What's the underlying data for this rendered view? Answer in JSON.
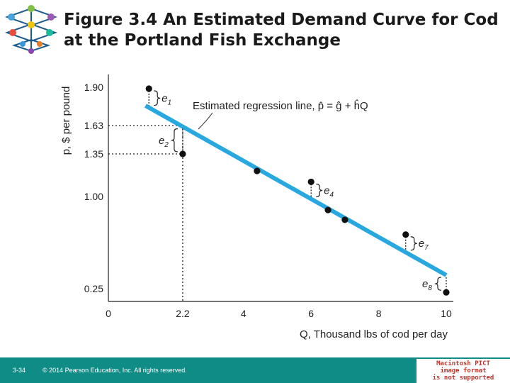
{
  "title": "Figure 3.4 An Estimated Demand Curve for Cod at the Portland Fish Exchange",
  "footer": {
    "slide_number": "3-34",
    "copyright": "© 2014 Pearson Education, Inc. All rights reserved.",
    "pict_notice": [
      "Macintosh PICT",
      "image format",
      "is not supported"
    ]
  },
  "colors": {
    "footer": "#0f8c86",
    "regression_line": "#29a8e0",
    "points": "#111111"
  },
  "chart_data": {
    "type": "scatter",
    "title": "",
    "xlabel": "Q, Thousand lbs of cod per day",
    "ylabel": "p, $ per pound",
    "xlim": [
      0,
      10
    ],
    "x_ticks": [
      0,
      2.2,
      4,
      6,
      8,
      10
    ],
    "x_tick_labels": [
      "0",
      "2.2",
      "4",
      "6",
      "8",
      "10"
    ],
    "y_ticks": [
      0.25,
      1.0,
      1.35,
      1.63,
      1.9
    ],
    "y_tick_labels": [
      "0.25",
      "1.00",
      "1.35",
      "1.63",
      "1.90"
    ],
    "grid": false,
    "points": [
      {
        "x": 1.2,
        "y": 1.89
      },
      {
        "x": 2.2,
        "y": 1.35
      },
      {
        "x": 4.4,
        "y": 1.21
      },
      {
        "x": 6.0,
        "y": 1.12
      },
      {
        "x": 6.5,
        "y": 0.89
      },
      {
        "x": 7.0,
        "y": 0.81
      },
      {
        "x": 8.8,
        "y": 0.69
      },
      {
        "x": 10.0,
        "y": 0.22
      }
    ],
    "regression_line": {
      "x": [
        1.1,
        10.0
      ],
      "y": [
        1.77,
        0.36
      ]
    },
    "residuals": [
      {
        "label": "e",
        "sub": "1",
        "point": 0
      },
      {
        "label": "e",
        "sub": "2",
        "point": 1
      },
      {
        "label": "e",
        "sub": "4",
        "point": 3
      },
      {
        "label": "e",
        "sub": "7",
        "point": 6
      },
      {
        "label": "e",
        "sub": "8",
        "point": 7
      }
    ],
    "reference": {
      "x": 2.2,
      "y_line": 1.63,
      "y_point": 1.35
    },
    "annotation": "Estimated regression line, p̂ = ĝ + ĥQ"
  }
}
